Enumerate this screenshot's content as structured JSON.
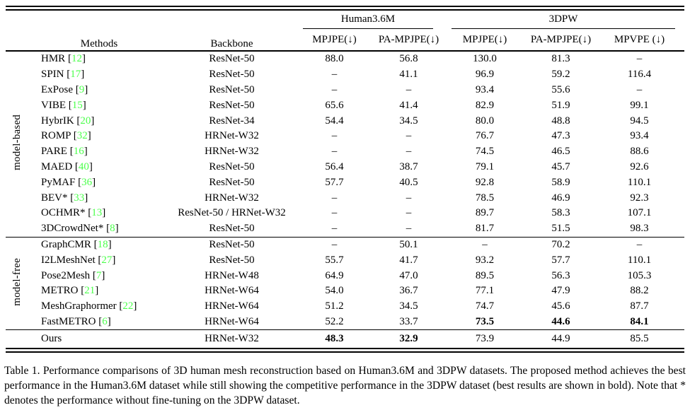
{
  "colors": {
    "citation_green": "#4cff4c"
  },
  "table": {
    "header": {
      "methods": "Methods",
      "backbone": "Backbone",
      "datasets": [
        {
          "label": "Human3.6M",
          "columns": [
            "MPJPE(↓)",
            "PA-MPJPE(↓)"
          ]
        },
        {
          "label": "3DPW",
          "columns": [
            "MPJPE(↓)",
            "PA-MPJPE(↓)",
            "MPVPE (↓)"
          ]
        }
      ]
    },
    "groups": [
      {
        "label": "model-based",
        "rows": [
          {
            "method": "HMR",
            "cite": "12",
            "backbone": "ResNet-50",
            "values": [
              "88.0",
              "56.8",
              "130.0",
              "81.3",
              "–"
            ],
            "bold": [
              0,
              0,
              0,
              0,
              0
            ]
          },
          {
            "method": "SPIN",
            "cite": "17",
            "backbone": "ResNet-50",
            "values": [
              "–",
              "41.1",
              "96.9",
              "59.2",
              "116.4"
            ],
            "bold": [
              0,
              0,
              0,
              0,
              0
            ]
          },
          {
            "method": "ExPose",
            "cite": "9",
            "backbone": "ResNet-50",
            "values": [
              "–",
              "–",
              "93.4",
              "55.6",
              "–"
            ],
            "bold": [
              0,
              0,
              0,
              0,
              0
            ]
          },
          {
            "method": "VIBE",
            "cite": "15",
            "backbone": "ResNet-50",
            "values": [
              "65.6",
              "41.4",
              "82.9",
              "51.9",
              "99.1"
            ],
            "bold": [
              0,
              0,
              0,
              0,
              0
            ]
          },
          {
            "method": "HybrIK",
            "cite": "20",
            "backbone": "ResNet-34",
            "values": [
              "54.4",
              "34.5",
              "80.0",
              "48.8",
              "94.5"
            ],
            "bold": [
              0,
              0,
              0,
              0,
              0
            ]
          },
          {
            "method": "ROMP",
            "cite": "32",
            "backbone": "HRNet-W32",
            "values": [
              "–",
              "–",
              "76.7",
              "47.3",
              "93.4"
            ],
            "bold": [
              0,
              0,
              0,
              0,
              0
            ]
          },
          {
            "method": "PARE",
            "cite": "16",
            "backbone": "HRNet-W32",
            "values": [
              "–",
              "–",
              "74.5",
              "46.5",
              "88.6"
            ],
            "bold": [
              0,
              0,
              0,
              0,
              0
            ]
          },
          {
            "method": "MAED",
            "cite": "40",
            "backbone": "ResNet-50",
            "values": [
              "56.4",
              "38.7",
              "79.1",
              "45.7",
              "92.6"
            ],
            "bold": [
              0,
              0,
              0,
              0,
              0
            ]
          },
          {
            "method": "PyMAF",
            "cite": "36",
            "backbone": "ResNet-50",
            "values": [
              "57.7",
              "40.5",
              "92.8",
              "58.9",
              "110.1"
            ],
            "bold": [
              0,
              0,
              0,
              0,
              0
            ]
          },
          {
            "method": "BEV*",
            "cite": "33",
            "backbone": "HRNet-W32",
            "values": [
              "–",
              "–",
              "78.5",
              "46.9",
              "92.3"
            ],
            "bold": [
              0,
              0,
              0,
              0,
              0
            ]
          },
          {
            "method": "OCHMR*",
            "cite": "13",
            "backbone": "ResNet-50 / HRNet-W32",
            "values": [
              "–",
              "–",
              "89.7",
              "58.3",
              "107.1"
            ],
            "bold": [
              0,
              0,
              0,
              0,
              0
            ]
          },
          {
            "method": "3DCrowdNet*",
            "cite": "8",
            "backbone": "ResNet-50",
            "values": [
              "–",
              "–",
              "81.7",
              "51.5",
              "98.3"
            ],
            "bold": [
              0,
              0,
              0,
              0,
              0
            ]
          }
        ]
      },
      {
        "label": "model-free",
        "rows": [
          {
            "method": "GraphCMR",
            "cite": "18",
            "backbone": "ResNet-50",
            "values": [
              "–",
              "50.1",
              "–",
              "70.2",
              "–"
            ],
            "bold": [
              0,
              0,
              0,
              0,
              0
            ]
          },
          {
            "method": "I2LMeshNet",
            "cite": "27",
            "backbone": "ResNet-50",
            "values": [
              "55.7",
              "41.7",
              "93.2",
              "57.7",
              "110.1"
            ],
            "bold": [
              0,
              0,
              0,
              0,
              0
            ]
          },
          {
            "method": "Pose2Mesh",
            "cite": "7",
            "backbone": "HRNet-W48",
            "values": [
              "64.9",
              "47.0",
              "89.5",
              "56.3",
              "105.3"
            ],
            "bold": [
              0,
              0,
              0,
              0,
              0
            ]
          },
          {
            "method": "METRO",
            "cite": "21",
            "backbone": "HRNet-W64",
            "values": [
              "54.0",
              "36.7",
              "77.1",
              "47.9",
              "88.2"
            ],
            "bold": [
              0,
              0,
              0,
              0,
              0
            ]
          },
          {
            "method": "MeshGraphormer",
            "cite": "22",
            "backbone": "HRNet-W64",
            "values": [
              "51.2",
              "34.5",
              "74.7",
              "45.6",
              "87.7"
            ],
            "bold": [
              0,
              0,
              0,
              0,
              0
            ]
          },
          {
            "method": "FastMETRO",
            "cite": "6",
            "backbone": "HRNet-W64",
            "values": [
              "52.2",
              "33.7",
              "73.5",
              "44.6",
              "84.1"
            ],
            "bold": [
              0,
              0,
              1,
              1,
              1
            ]
          }
        ]
      }
    ],
    "ours": {
      "method": "Ours",
      "backbone": "HRNet-W32",
      "values": [
        "48.3",
        "32.9",
        "73.9",
        "44.9",
        "85.5"
      ],
      "bold": [
        1,
        1,
        0,
        0,
        0
      ]
    }
  },
  "caption": "Table 1.  Performance comparisons of 3D human mesh reconstruction based on Human3.6M and 3DPW datasets. The proposed method achieves the best performance in the Human3.6M dataset while still showing the competitive performance in the 3DPW dataset (best results are shown in bold). Note that * denotes the performance without fine-tuning on the 3DPW dataset."
}
